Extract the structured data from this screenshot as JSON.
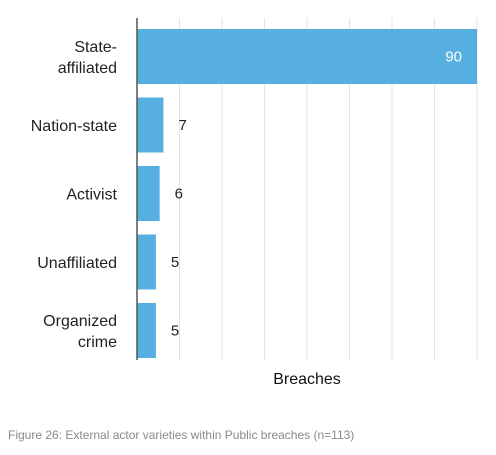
{
  "chart_data": {
    "type": "bar",
    "orientation": "horizontal",
    "categories": [
      [
        "State-",
        "affiliated"
      ],
      [
        "Nation-state"
      ],
      [
        "Activist"
      ],
      [
        "Unaffiliated"
      ],
      [
        "Organized",
        "crime"
      ]
    ],
    "values": [
      90,
      7,
      6,
      5,
      5
    ],
    "data_labels": [
      "90",
      "7",
      "6",
      "5",
      "5"
    ],
    "xlabel": "Breaches",
    "xlim": [
      0,
      90
    ],
    "grid": "vertical",
    "bar_color": "#56afe0",
    "grid_color": "#e3e3e3",
    "axis_color": "#555555"
  },
  "caption": "Figure 26: External actor varieties within Public breaches (n=113)"
}
